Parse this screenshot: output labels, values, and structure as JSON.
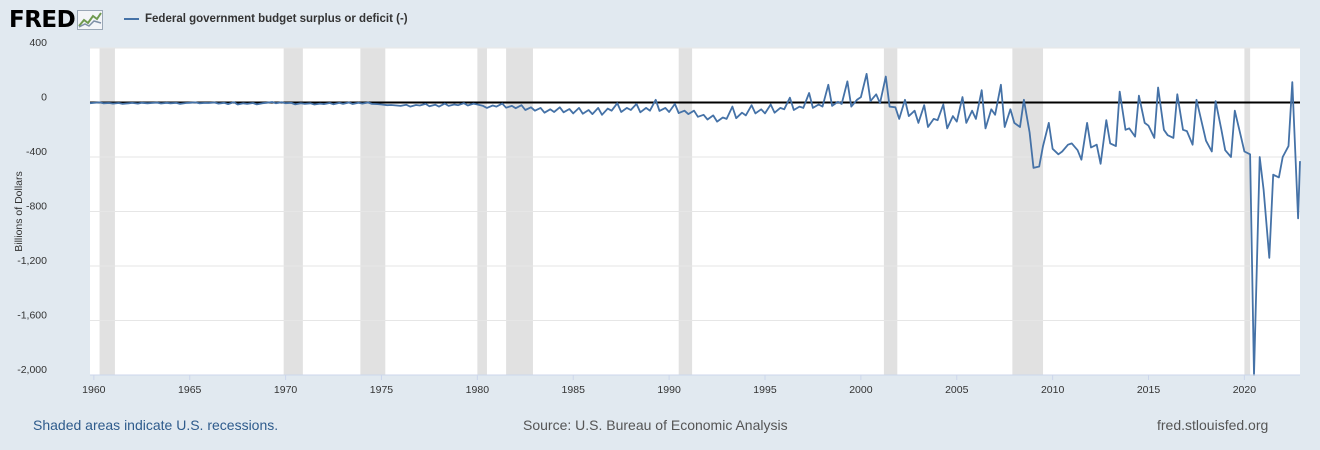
{
  "header": {
    "logo_text": "FRED",
    "logo_icon": "fred-graph-icon"
  },
  "footer": {
    "recession_note": "Shaded areas indicate U.S. recessions.",
    "source": "Source: U.S. Bureau of Economic Analysis",
    "site": "fred.stlouisfed.org"
  },
  "colors": {
    "background": "#e1e9f0",
    "plot_background": "#ffffff",
    "series": "#4572a7",
    "recession": "#e1e1e1",
    "zero_line": "#000000",
    "link": "#2e5b8c"
  },
  "chart_data": {
    "type": "line",
    "title": "",
    "xlabel": "",
    "ylabel": "Billions of Dollars",
    "xlim": [
      1959.8,
      2022.9
    ],
    "ylim": [
      -2000,
      400
    ],
    "x_ticks": [
      "1960",
      "1965",
      "1970",
      "1975",
      "1980",
      "1985",
      "1990",
      "1995",
      "2000",
      "2005",
      "2010",
      "2015",
      "2020"
    ],
    "y_ticks": [
      "400",
      "0",
      "-400",
      "-800",
      "-1,200",
      "-1,600",
      "-2,000"
    ],
    "y_tick_values": [
      400,
      0,
      -400,
      -800,
      -1200,
      -1600,
      -2000
    ],
    "grid": "horizontal",
    "legend": "top-left",
    "zero_line": true,
    "recessions": [
      [
        1960.3,
        1961.1
      ],
      [
        1969.9,
        1970.9
      ],
      [
        1973.9,
        1975.2
      ],
      [
        1980.0,
        1980.5
      ],
      [
        1981.5,
        1982.9
      ],
      [
        1990.5,
        1991.2
      ],
      [
        2001.2,
        2001.9
      ],
      [
        2007.9,
        2009.5
      ],
      [
        2020.0,
        2020.3
      ]
    ],
    "series": [
      {
        "name": "Federal government budget surplus or deficit (-)",
        "points": [
          [
            1959.8,
            -5
          ],
          [
            1960.0,
            -3
          ],
          [
            1960.3,
            1
          ],
          [
            1960.5,
            -6
          ],
          [
            1960.8,
            -4
          ],
          [
            1961.0,
            -8
          ],
          [
            1961.3,
            -4
          ],
          [
            1961.5,
            -10
          ],
          [
            1961.8,
            -6
          ],
          [
            1962.0,
            -3
          ],
          [
            1962.3,
            -8
          ],
          [
            1962.5,
            -2
          ],
          [
            1962.8,
            -6
          ],
          [
            1963.0,
            -4
          ],
          [
            1963.3,
            -1
          ],
          [
            1963.5,
            -7
          ],
          [
            1963.8,
            -2
          ],
          [
            1964.0,
            -6
          ],
          [
            1964.3,
            -3
          ],
          [
            1964.5,
            -10
          ],
          [
            1964.8,
            -4
          ],
          [
            1965.0,
            -2
          ],
          [
            1965.3,
            1
          ],
          [
            1965.5,
            -6
          ],
          [
            1965.8,
            -3
          ],
          [
            1966.0,
            -4
          ],
          [
            1966.3,
            0
          ],
          [
            1966.5,
            -8
          ],
          [
            1966.8,
            -2
          ],
          [
            1967.0,
            -12
          ],
          [
            1967.3,
            2
          ],
          [
            1967.5,
            -15
          ],
          [
            1967.8,
            -6
          ],
          [
            1968.0,
            -10
          ],
          [
            1968.3,
            -4
          ],
          [
            1968.5,
            -14
          ],
          [
            1968.8,
            -5
          ],
          [
            1969.0,
            -2
          ],
          [
            1969.3,
            4
          ],
          [
            1969.5,
            -6
          ],
          [
            1969.8,
            2
          ],
          [
            1970.0,
            -5
          ],
          [
            1970.3,
            -3
          ],
          [
            1970.5,
            -14
          ],
          [
            1970.8,
            -5
          ],
          [
            1971.0,
            -10
          ],
          [
            1971.3,
            -6
          ],
          [
            1971.5,
            -15
          ],
          [
            1971.8,
            -8
          ],
          [
            1972.0,
            -12
          ],
          [
            1972.3,
            -4
          ],
          [
            1972.5,
            -13
          ],
          [
            1972.8,
            -3
          ],
          [
            1973.0,
            -10
          ],
          [
            1973.3,
            0
          ],
          [
            1973.5,
            -11
          ],
          [
            1973.8,
            -2
          ],
          [
            1974.0,
            -8
          ],
          [
            1974.3,
            0
          ],
          [
            1974.5,
            -10
          ],
          [
            1974.8,
            -12
          ],
          [
            1975.0,
            -15
          ],
          [
            1975.3,
            -20
          ],
          [
            1975.5,
            -18
          ],
          [
            1975.8,
            -22
          ],
          [
            1976.0,
            -25
          ],
          [
            1976.3,
            -17
          ],
          [
            1976.5,
            -30
          ],
          [
            1976.8,
            -18
          ],
          [
            1977.0,
            -22
          ],
          [
            1977.3,
            -10
          ],
          [
            1977.5,
            -28
          ],
          [
            1977.8,
            -16
          ],
          [
            1978.0,
            -30
          ],
          [
            1978.3,
            -8
          ],
          [
            1978.5,
            -25
          ],
          [
            1978.8,
            -15
          ],
          [
            1979.0,
            -20
          ],
          [
            1979.3,
            -5
          ],
          [
            1979.5,
            -22
          ],
          [
            1979.8,
            -8
          ],
          [
            1980.0,
            -15
          ],
          [
            1980.3,
            -25
          ],
          [
            1980.5,
            -40
          ],
          [
            1980.8,
            -22
          ],
          [
            1981.0,
            -30
          ],
          [
            1981.3,
            -8
          ],
          [
            1981.5,
            -38
          ],
          [
            1981.8,
            -25
          ],
          [
            1982.0,
            -42
          ],
          [
            1982.3,
            -20
          ],
          [
            1982.5,
            -55
          ],
          [
            1982.8,
            -35
          ],
          [
            1983.0,
            -60
          ],
          [
            1983.3,
            -40
          ],
          [
            1983.5,
            -75
          ],
          [
            1983.8,
            -50
          ],
          [
            1984.0,
            -70
          ],
          [
            1984.3,
            -35
          ],
          [
            1984.5,
            -72
          ],
          [
            1984.8,
            -48
          ],
          [
            1985.0,
            -80
          ],
          [
            1985.3,
            -40
          ],
          [
            1985.5,
            -82
          ],
          [
            1985.8,
            -55
          ],
          [
            1986.0,
            -85
          ],
          [
            1986.3,
            -40
          ],
          [
            1986.5,
            -90
          ],
          [
            1986.8,
            -45
          ],
          [
            1987.0,
            -60
          ],
          [
            1987.3,
            -5
          ],
          [
            1987.5,
            -70
          ],
          [
            1987.8,
            -40
          ],
          [
            1988.0,
            -55
          ],
          [
            1988.3,
            -10
          ],
          [
            1988.5,
            -72
          ],
          [
            1988.8,
            -40
          ],
          [
            1989.0,
            -60
          ],
          [
            1989.3,
            20
          ],
          [
            1989.5,
            -62
          ],
          [
            1989.8,
            -40
          ],
          [
            1990.0,
            -70
          ],
          [
            1990.3,
            -10
          ],
          [
            1990.5,
            -78
          ],
          [
            1990.8,
            -60
          ],
          [
            1991.0,
            -85
          ],
          [
            1991.3,
            -60
          ],
          [
            1991.5,
            -105
          ],
          [
            1991.8,
            -90
          ],
          [
            1992.0,
            -125
          ],
          [
            1992.3,
            -95
          ],
          [
            1992.5,
            -140
          ],
          [
            1992.8,
            -110
          ],
          [
            1993.0,
            -120
          ],
          [
            1993.3,
            -30
          ],
          [
            1993.5,
            -115
          ],
          [
            1993.8,
            -75
          ],
          [
            1994.0,
            -95
          ],
          [
            1994.3,
            -20
          ],
          [
            1994.5,
            -80
          ],
          [
            1994.8,
            -50
          ],
          [
            1995.0,
            -80
          ],
          [
            1995.3,
            -15
          ],
          [
            1995.5,
            -75
          ],
          [
            1995.8,
            -40
          ],
          [
            1996.0,
            -50
          ],
          [
            1996.3,
            35
          ],
          [
            1996.5,
            -55
          ],
          [
            1996.8,
            -30
          ],
          [
            1997.0,
            -40
          ],
          [
            1997.3,
            70
          ],
          [
            1997.5,
            -40
          ],
          [
            1997.8,
            -15
          ],
          [
            1998.0,
            -30
          ],
          [
            1998.3,
            130
          ],
          [
            1998.5,
            -25
          ],
          [
            1998.8,
            5
          ],
          [
            1999.0,
            -10
          ],
          [
            1999.3,
            155
          ],
          [
            1999.5,
            -30
          ],
          [
            1999.8,
            20
          ],
          [
            2000.0,
            40
          ],
          [
            2000.3,
            210
          ],
          [
            2000.5,
            10
          ],
          [
            2000.8,
            60
          ],
          [
            2001.0,
            -5
          ],
          [
            2001.3,
            190
          ],
          [
            2001.5,
            -30
          ],
          [
            2001.8,
            -35
          ],
          [
            2002.0,
            -120
          ],
          [
            2002.3,
            20
          ],
          [
            2002.5,
            -100
          ],
          [
            2002.8,
            -60
          ],
          [
            2003.0,
            -150
          ],
          [
            2003.3,
            -20
          ],
          [
            2003.5,
            -180
          ],
          [
            2003.8,
            -120
          ],
          [
            2004.0,
            -130
          ],
          [
            2004.3,
            -15
          ],
          [
            2004.5,
            -190
          ],
          [
            2004.8,
            -100
          ],
          [
            2005.0,
            -140
          ],
          [
            2005.3,
            40
          ],
          [
            2005.5,
            -150
          ],
          [
            2005.8,
            -60
          ],
          [
            2006.0,
            -120
          ],
          [
            2006.3,
            90
          ],
          [
            2006.5,
            -190
          ],
          [
            2006.8,
            -50
          ],
          [
            2007.0,
            -90
          ],
          [
            2007.3,
            130
          ],
          [
            2007.5,
            -180
          ],
          [
            2007.8,
            -50
          ],
          [
            2008.0,
            -150
          ],
          [
            2008.3,
            -180
          ],
          [
            2008.5,
            20
          ],
          [
            2008.8,
            -220
          ],
          [
            2009.0,
            -480
          ],
          [
            2009.3,
            -470
          ],
          [
            2009.5,
            -320
          ],
          [
            2009.8,
            -150
          ],
          [
            2010.0,
            -340
          ],
          [
            2010.3,
            -380
          ],
          [
            2010.5,
            -360
          ],
          [
            2010.8,
            -310
          ],
          [
            2011.0,
            -300
          ],
          [
            2011.3,
            -350
          ],
          [
            2011.5,
            -420
          ],
          [
            2011.8,
            -150
          ],
          [
            2012.0,
            -330
          ],
          [
            2012.3,
            -310
          ],
          [
            2012.5,
            -450
          ],
          [
            2012.8,
            -130
          ],
          [
            2013.0,
            -300
          ],
          [
            2013.3,
            -320
          ],
          [
            2013.5,
            80
          ],
          [
            2013.8,
            -200
          ],
          [
            2014.0,
            -190
          ],
          [
            2014.3,
            -250
          ],
          [
            2014.5,
            50
          ],
          [
            2014.8,
            -150
          ],
          [
            2015.0,
            -170
          ],
          [
            2015.3,
            -260
          ],
          [
            2015.5,
            110
          ],
          [
            2015.8,
            -200
          ],
          [
            2016.0,
            -240
          ],
          [
            2016.3,
            -260
          ],
          [
            2016.5,
            60
          ],
          [
            2016.8,
            -200
          ],
          [
            2017.0,
            -210
          ],
          [
            2017.3,
            -310
          ],
          [
            2017.5,
            20
          ],
          [
            2017.8,
            -160
          ],
          [
            2018.0,
            -280
          ],
          [
            2018.3,
            -360
          ],
          [
            2018.5,
            10
          ],
          [
            2018.8,
            -200
          ],
          [
            2019.0,
            -350
          ],
          [
            2019.3,
            -400
          ],
          [
            2019.5,
            -60
          ],
          [
            2019.8,
            -240
          ],
          [
            2020.0,
            -360
          ],
          [
            2020.3,
            -380
          ],
          [
            2020.5,
            -2000
          ],
          [
            2020.8,
            -400
          ],
          [
            2021.0,
            -640
          ],
          [
            2021.3,
            -1140
          ],
          [
            2021.5,
            -530
          ],
          [
            2021.8,
            -550
          ],
          [
            2022.0,
            -400
          ],
          [
            2022.3,
            -320
          ],
          [
            2022.5,
            150
          ],
          [
            2022.8,
            -850
          ],
          [
            2022.9,
            -430
          ]
        ]
      }
    ]
  }
}
